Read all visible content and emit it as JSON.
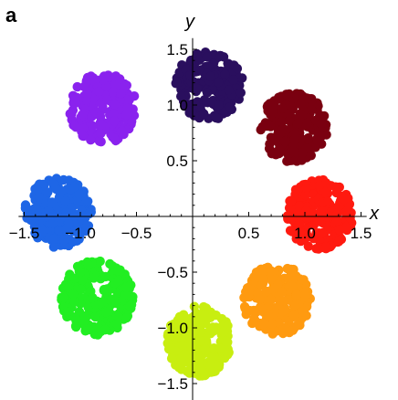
{
  "panel_label": "a",
  "chart_data": {
    "type": "scatter",
    "title": "",
    "xlabel": "x",
    "ylabel": "y",
    "xlim": [
      -1.55,
      1.55
    ],
    "ylim": [
      -1.6,
      1.6
    ],
    "xticks": [
      -1.5,
      -1.0,
      -0.5,
      0.5,
      1.0,
      1.5
    ],
    "yticks": [
      -1.5,
      -1.0,
      -0.5,
      0.5,
      1.0,
      1.5
    ],
    "xtick_labels": [
      "−1.5",
      "−1.0",
      "−0.5",
      "0.5",
      "1.0",
      "1.5"
    ],
    "ytick_labels": [
      "−1.5",
      "−1.0",
      "−0.5",
      "0.5",
      "1.0",
      "1.5"
    ],
    "grid": false,
    "legend": "none",
    "clusters": [
      {
        "color": "#2a0f5e",
        "center": [
          0.15,
          1.18
        ],
        "radius": 0.3,
        "count": 220
      },
      {
        "color": "#7a0010",
        "center": [
          0.9,
          0.8
        ],
        "radius": 0.3,
        "count": 220
      },
      {
        "color": "#ff1a10",
        "center": [
          1.13,
          0.02
        ],
        "radius": 0.3,
        "count": 220
      },
      {
        "color": "#ff9a10",
        "center": [
          0.75,
          -0.75
        ],
        "radius": 0.3,
        "count": 220
      },
      {
        "color": "#c8ee10",
        "center": [
          0.05,
          -1.12
        ],
        "radius": 0.3,
        "count": 220
      },
      {
        "color": "#22ee22",
        "center": [
          -0.85,
          -0.73
        ],
        "radius": 0.32,
        "count": 230
      },
      {
        "color": "#1e66e6",
        "center": [
          -1.2,
          0.03
        ],
        "radius": 0.3,
        "count": 220
      },
      {
        "color": "#8a22ee",
        "center": [
          -0.8,
          0.97
        ],
        "radius": 0.3,
        "count": 220
      }
    ]
  }
}
